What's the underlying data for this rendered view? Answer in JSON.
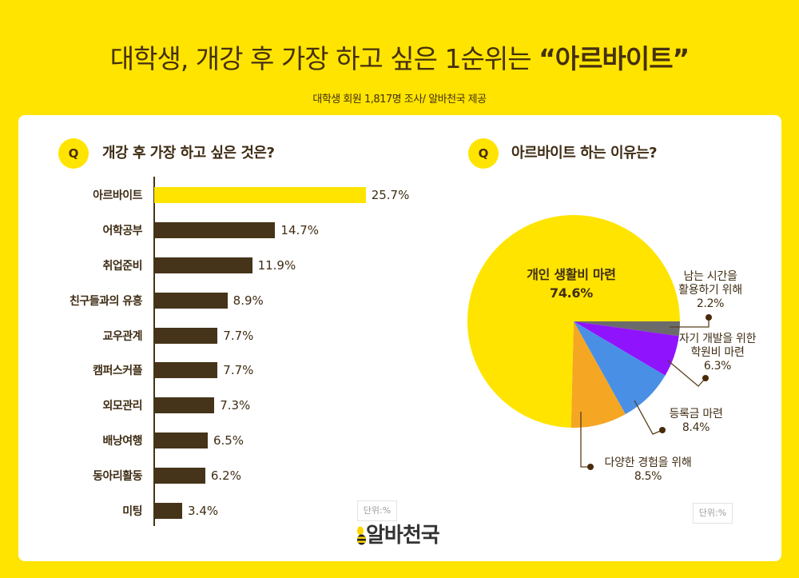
{
  "header": {
    "title_prefix": "대학생, 개강 후 가장 하고 싶은 1순위는 ",
    "title_highlight": "“아르바이트”",
    "subtitle": "대학생 회원 1,817명 조사/ 알바천국 제공"
  },
  "left_panel": {
    "q_badge": "Q",
    "question": "개강 후 가장 하고 싶은 것은?",
    "unit": "단위:%"
  },
  "right_panel": {
    "q_badge": "Q",
    "question": "아르바이트 하는 이유는?",
    "unit": "단위:%"
  },
  "logo": {
    "text": "알바천국",
    "icon": "bee-icon"
  },
  "colors": {
    "background": "#FFE400",
    "card": "#FFFFFF",
    "text": "#3F2D14",
    "bar_default": "#45341A",
    "bar_highlight": "#FFE400"
  },
  "chart_data": [
    {
      "type": "bar",
      "orientation": "horizontal",
      "title": "개강 후 가장 하고 싶은 것은?",
      "categories": [
        "아르바이트",
        "어학공부",
        "취업준비",
        "친구들과의 유흥",
        "교우관계",
        "캠퍼스커플",
        "외모관리",
        "배낭여행",
        "동아리활동",
        "미팅"
      ],
      "values": [
        25.7,
        14.7,
        11.9,
        8.9,
        7.7,
        7.7,
        7.3,
        6.5,
        6.2,
        3.4
      ],
      "value_labels": [
        "25.7%",
        "14.7%",
        "11.9%",
        "8.9%",
        "7.7%",
        "7.7%",
        "7.3%",
        "6.5%",
        "6.2%",
        "3.4%"
      ],
      "highlight_index": 0,
      "unit": "단위:%",
      "grid": false,
      "colors": {
        "highlight": "#FFE400",
        "default": "#45341A"
      }
    },
    {
      "type": "pie",
      "title": "아르바이트 하는 이유는?",
      "unit": "단위:%",
      "start_angle_deg": 0,
      "direction": "clockwise",
      "slices": [
        {
          "label": "남는 시간을 활용하기 위해",
          "label_lines": [
            "남는 시간을",
            "활용하기 위해"
          ],
          "value": 2.2,
          "value_label": "2.2%",
          "color": "#6B6B6B"
        },
        {
          "label": "자기 개발을 위한 학원비 마련",
          "label_lines": [
            "자기 개발을 위한",
            "학원비 마련"
          ],
          "value": 6.3,
          "value_label": "6.3%",
          "color": "#9013FE"
        },
        {
          "label": "등록금 마련",
          "label_lines": [
            "등록금 마련"
          ],
          "value": 8.4,
          "value_label": "8.4%",
          "color": "#4A8FE6"
        },
        {
          "label": "다양한 경험을 위해",
          "label_lines": [
            "다양한 경험을 위해"
          ],
          "value": 8.5,
          "value_label": "8.5%",
          "color": "#F5A623"
        },
        {
          "label": "개인 생활비 마련",
          "label_lines": [
            "개인 생활비 마련"
          ],
          "value": 74.6,
          "value_label": "74.6%",
          "color": "#FFE400"
        }
      ]
    }
  ]
}
